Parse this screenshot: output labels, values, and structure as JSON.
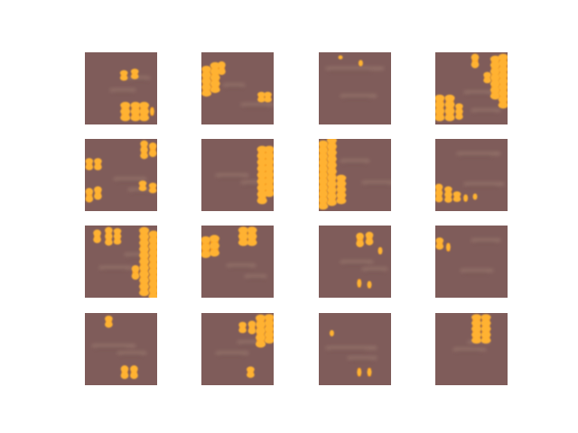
{
  "figure": {
    "grid": {
      "rows": 4,
      "cols": 4
    },
    "colors": {
      "page_background": "#ffffff",
      "tile_background": "#7f5c5a",
      "blob_fill": "#ff9d12",
      "blob_core": "#ffb233",
      "streak_light": "#b89a86",
      "streak_dark": "#6e4f4d"
    },
    "tiles": [
      {
        "label": "tile-r1-c1",
        "blob_columns": [
          [
            0.54,
            0.32,
            0.14
          ],
          [
            0.69,
            0.3,
            0.14
          ],
          [
            0.56,
            0.82,
            0.26
          ],
          [
            0.7,
            0.82,
            0.26
          ],
          [
            0.82,
            0.82,
            0.26
          ],
          [
            0.93,
            0.82,
            0.12
          ]
        ],
        "streaks": [
          [
            0.35,
            0.52,
            0.35
          ],
          [
            0.6,
            0.35,
            0.3
          ]
        ]
      },
      {
        "label": "tile-r1-c2",
        "blob_columns": [
          [
            0.07,
            0.4,
            0.42
          ],
          [
            0.19,
            0.35,
            0.42
          ],
          [
            0.28,
            0.22,
            0.18
          ],
          [
            0.83,
            0.62,
            0.14
          ],
          [
            0.92,
            0.62,
            0.14
          ]
        ],
        "streaks": [
          [
            0.55,
            0.72,
            0.45
          ],
          [
            0.3,
            0.45,
            0.3
          ]
        ]
      },
      {
        "label": "tile-r1-c3",
        "blob_columns": [
          [
            0.3,
            0.07,
            0.05
          ],
          [
            0.58,
            0.15,
            0.08
          ]
        ],
        "streaks": [
          [
            0.1,
            0.22,
            0.8
          ],
          [
            0.3,
            0.6,
            0.5
          ]
        ]
      },
      {
        "label": "tile-r1-c4",
        "blob_columns": [
          [
            0.55,
            0.12,
            0.2
          ],
          [
            0.83,
            0.35,
            0.6
          ],
          [
            0.94,
            0.4,
            0.75
          ],
          [
            0.06,
            0.77,
            0.36
          ],
          [
            0.2,
            0.77,
            0.36
          ],
          [
            0.33,
            0.82,
            0.22
          ],
          [
            0.72,
            0.35,
            0.15
          ]
        ],
        "streaks": [
          [
            0.4,
            0.55,
            0.4
          ],
          [
            0.5,
            0.8,
            0.4
          ]
        ]
      },
      {
        "label": "tile-r2-c1",
        "blob_columns": [
          [
            0.82,
            0.15,
            0.25
          ],
          [
            0.94,
            0.15,
            0.2
          ],
          [
            0.06,
            0.35,
            0.16
          ],
          [
            0.18,
            0.35,
            0.16
          ],
          [
            0.06,
            0.78,
            0.2
          ],
          [
            0.18,
            0.75,
            0.18
          ],
          [
            0.8,
            0.65,
            0.14
          ],
          [
            0.94,
            0.68,
            0.14
          ]
        ],
        "streaks": [
          [
            0.4,
            0.55,
            0.45
          ],
          [
            0.6,
            0.7,
            0.35
          ]
        ]
      },
      {
        "label": "tile-r2-c2",
        "blob_columns": [
          [
            0.84,
            0.5,
            0.8
          ],
          [
            0.94,
            0.45,
            0.7
          ]
        ],
        "streaks": [
          [
            0.2,
            0.5,
            0.45
          ],
          [
            0.55,
            0.6,
            0.35
          ]
        ]
      },
      {
        "label": "tile-r2-c3",
        "blob_columns": [
          [
            0.06,
            0.5,
            0.95
          ],
          [
            0.18,
            0.45,
            0.95
          ],
          [
            0.31,
            0.7,
            0.4
          ]
        ],
        "streaks": [
          [
            0.3,
            0.3,
            0.4
          ],
          [
            0.6,
            0.6,
            0.45
          ]
        ]
      },
      {
        "label": "tile-r2-c4",
        "blob_columns": [
          [
            0.05,
            0.75,
            0.25
          ],
          [
            0.18,
            0.77,
            0.22
          ],
          [
            0.3,
            0.8,
            0.14
          ],
          [
            0.42,
            0.82,
            0.1
          ],
          [
            0.55,
            0.8,
            0.08
          ]
        ],
        "streaks": [
          [
            0.3,
            0.2,
            0.6
          ],
          [
            0.4,
            0.62,
            0.55
          ]
        ]
      },
      {
        "label": "tile-r3-c1",
        "blob_columns": [
          [
            0.82,
            0.5,
            0.95
          ],
          [
            0.95,
            0.55,
            0.95
          ],
          [
            0.33,
            0.15,
            0.25
          ],
          [
            0.45,
            0.15,
            0.22
          ],
          [
            0.17,
            0.15,
            0.18
          ],
          [
            0.7,
            0.65,
            0.2
          ]
        ],
        "streaks": [
          [
            0.2,
            0.58,
            0.45
          ],
          [
            0.55,
            0.4,
            0.35
          ]
        ]
      },
      {
        "label": "tile-r3-c2",
        "blob_columns": [
          [
            0.06,
            0.3,
            0.3
          ],
          [
            0.18,
            0.28,
            0.3
          ],
          [
            0.58,
            0.15,
            0.26
          ],
          [
            0.7,
            0.15,
            0.26
          ]
        ],
        "streaks": [
          [
            0.35,
            0.55,
            0.4
          ],
          [
            0.6,
            0.7,
            0.3
          ]
        ]
      },
      {
        "label": "tile-r3-c3",
        "blob_columns": [
          [
            0.57,
            0.2,
            0.2
          ],
          [
            0.7,
            0.18,
            0.18
          ],
          [
            0.56,
            0.8,
            0.12
          ],
          [
            0.7,
            0.82,
            0.1
          ],
          [
            0.85,
            0.35,
            0.1
          ]
        ],
        "streaks": [
          [
            0.3,
            0.5,
            0.45
          ],
          [
            0.6,
            0.6,
            0.35
          ]
        ]
      },
      {
        "label": "tile-r3-c4",
        "blob_columns": [
          [
            0.06,
            0.25,
            0.16
          ],
          [
            0.18,
            0.3,
            0.12
          ]
        ],
        "streaks": [
          [
            0.5,
            0.2,
            0.4
          ],
          [
            0.35,
            0.62,
            0.45
          ]
        ]
      },
      {
        "label": "tile-r4-c1",
        "blob_columns": [
          [
            0.33,
            0.12,
            0.16
          ],
          [
            0.55,
            0.82,
            0.18
          ],
          [
            0.68,
            0.82,
            0.18
          ]
        ],
        "streaks": [
          [
            0.1,
            0.45,
            0.6
          ],
          [
            0.45,
            0.55,
            0.4
          ]
        ]
      },
      {
        "label": "tile-r4-c2",
        "blob_columns": [
          [
            0.57,
            0.2,
            0.15
          ],
          [
            0.82,
            0.25,
            0.45
          ],
          [
            0.94,
            0.22,
            0.4
          ],
          [
            0.7,
            0.2,
            0.18
          ],
          [
            0.68,
            0.82,
            0.15
          ]
        ],
        "streaks": [
          [
            0.2,
            0.55,
            0.45
          ],
          [
            0.5,
            0.4,
            0.35
          ]
        ]
      },
      {
        "label": "tile-r4-c3",
        "blob_columns": [
          [
            0.18,
            0.28,
            0.08
          ],
          [
            0.56,
            0.82,
            0.12
          ],
          [
            0.7,
            0.82,
            0.12
          ]
        ],
        "streaks": [
          [
            0.1,
            0.48,
            0.7
          ],
          [
            0.4,
            0.62,
            0.4
          ]
        ]
      },
      {
        "label": "tile-r4-c4",
        "blob_columns": [
          [
            0.57,
            0.22,
            0.4
          ],
          [
            0.7,
            0.22,
            0.4
          ]
        ],
        "streaks": [
          [
            0.25,
            0.5,
            0.45
          ],
          [
            0.45,
            0.4,
            0.3
          ]
        ]
      }
    ]
  }
}
